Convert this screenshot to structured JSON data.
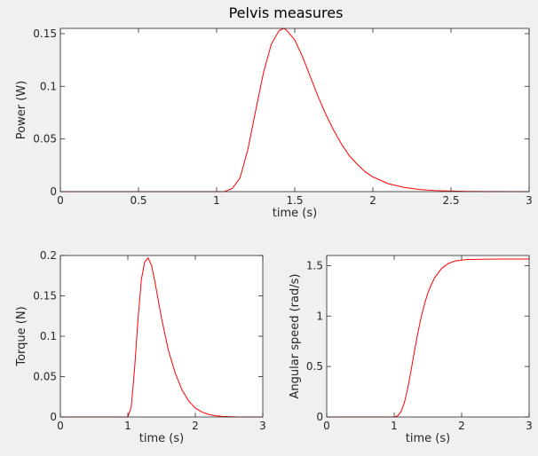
{
  "figure": {
    "title": "Pelvis measures"
  },
  "chart_data": [
    {
      "type": "line",
      "xlabel": "time (s)",
      "ylabel": "Power (W)",
      "xlim": [
        0,
        3
      ],
      "ylim": [
        0,
        0.155
      ],
      "xticks": [
        0,
        0.5,
        1,
        1.5,
        2,
        2.5,
        3
      ],
      "xtick_labels": [
        "0",
        "0.5",
        "1",
        "1.5",
        "2",
        "2.5",
        "3"
      ],
      "yticks": [
        0,
        0.05,
        0.1,
        0.15
      ],
      "ytick_labels": [
        "0",
        "0.05",
        "0.1",
        "0.15"
      ],
      "grid": false,
      "color": "#ff0000",
      "series": [
        {
          "x": [
            0,
            1.0,
            1.05,
            1.1,
            1.15,
            1.2,
            1.25,
            1.3,
            1.35,
            1.4,
            1.43,
            1.45,
            1.5,
            1.55,
            1.6,
            1.65,
            1.7,
            1.75,
            1.8,
            1.85,
            1.9,
            1.95,
            2.0,
            2.1,
            2.2,
            2.3,
            2.4,
            2.5,
            2.6,
            2.7,
            3.0
          ],
          "y": [
            0,
            0,
            0,
            0.003,
            0.013,
            0.04,
            0.077,
            0.113,
            0.14,
            0.153,
            0.155,
            0.153,
            0.144,
            0.128,
            0.109,
            0.09,
            0.073,
            0.058,
            0.045,
            0.034,
            0.026,
            0.019,
            0.014,
            0.0075,
            0.004,
            0.002,
            0.001,
            0.0005,
            0.0002,
            0.0001,
            0
          ]
        }
      ]
    },
    {
      "type": "line",
      "xlabel": "time (s)",
      "ylabel": "Torque (N)",
      "xlim": [
        0,
        3
      ],
      "ylim": [
        0,
        0.2
      ],
      "xticks": [
        0,
        1,
        2,
        3
      ],
      "xtick_labels": [
        "0",
        "1",
        "2",
        "3"
      ],
      "yticks": [
        0,
        0.05,
        0.1,
        0.15,
        0.2
      ],
      "ytick_labels": [
        "0",
        "0.05",
        "0.1",
        "0.15",
        "0.2"
      ],
      "grid": false,
      "color": "#ff0000",
      "series": [
        {
          "x": [
            0,
            1.0,
            1.05,
            1.1,
            1.15,
            1.2,
            1.25,
            1.3,
            1.35,
            1.4,
            1.45,
            1.5,
            1.6,
            1.7,
            1.8,
            1.9,
            2.0,
            2.1,
            2.2,
            2.3,
            2.4,
            2.6,
            3.0
          ],
          "y": [
            0,
            0,
            0.012,
            0.06,
            0.12,
            0.17,
            0.192,
            0.197,
            0.188,
            0.168,
            0.145,
            0.122,
            0.083,
            0.055,
            0.034,
            0.02,
            0.011,
            0.006,
            0.003,
            0.0015,
            0.0007,
            0.0001,
            0
          ]
        }
      ]
    },
    {
      "type": "line",
      "xlabel": "time (s)",
      "ylabel": "Angular speed (rad/s)",
      "xlim": [
        0,
        3
      ],
      "ylim": [
        0,
        1.6
      ],
      "xticks": [
        0,
        1,
        2,
        3
      ],
      "xtick_labels": [
        "0",
        "1",
        "2",
        "3"
      ],
      "yticks": [
        0,
        0.5,
        1,
        1.5
      ],
      "ytick_labels": [
        "0",
        "0.5",
        "1",
        "1.5"
      ],
      "grid": false,
      "color": "#ff0000",
      "series": [
        {
          "x": [
            0,
            1.0,
            1.05,
            1.1,
            1.15,
            1.2,
            1.25,
            1.3,
            1.35,
            1.4,
            1.45,
            1.5,
            1.55,
            1.6,
            1.7,
            1.8,
            1.9,
            2.0,
            2.1,
            2.2,
            2.4,
            2.6,
            3.0
          ],
          "y": [
            0,
            0,
            0.01,
            0.05,
            0.14,
            0.28,
            0.46,
            0.65,
            0.83,
            0.99,
            1.12,
            1.23,
            1.31,
            1.38,
            1.47,
            1.52,
            1.545,
            1.555,
            1.56,
            1.562,
            1.564,
            1.565,
            1.565
          ]
        }
      ]
    }
  ]
}
